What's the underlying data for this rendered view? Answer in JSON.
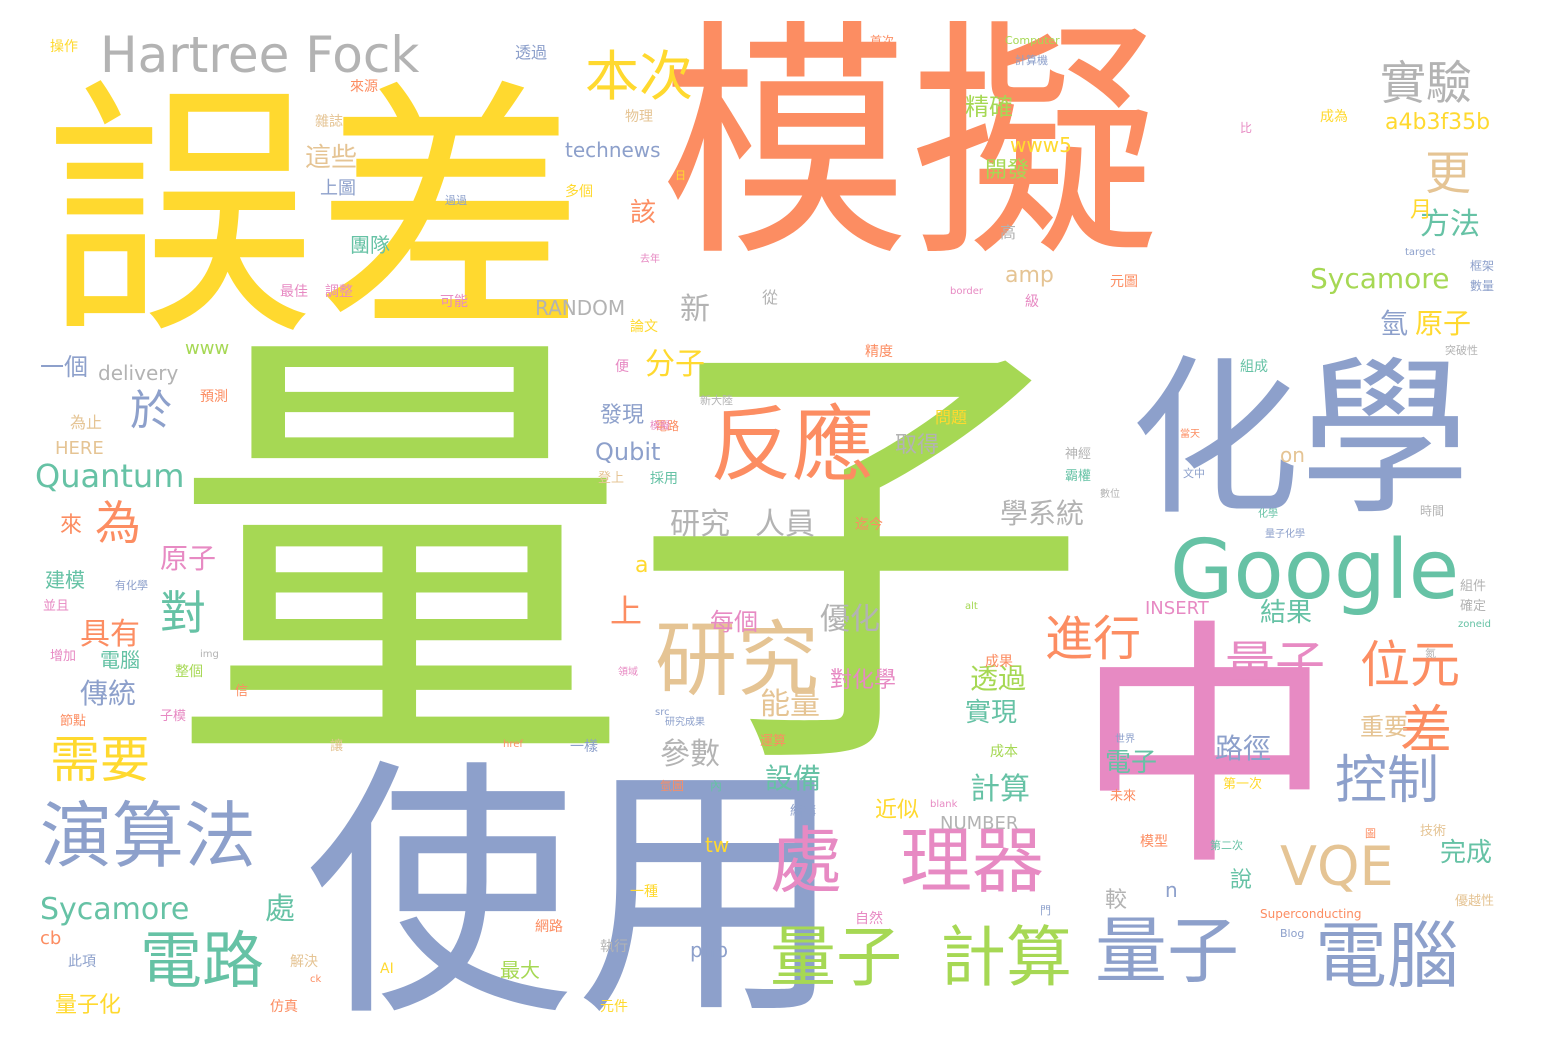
{
  "words": [
    {
      "text": "量子",
      "color": "#a6d854"
    },
    {
      "text": "模擬",
      "color": "#fc8d62"
    },
    {
      "text": "誤差",
      "color": "#ffd92f"
    },
    {
      "text": "使用",
      "color": "#8da0cb"
    },
    {
      "text": "化學",
      "color": "#8da0cb"
    },
    {
      "text": "中",
      "color": "#e78ac3"
    },
    {
      "text": "Google",
      "color": "#66c2a5"
    },
    {
      "text": "反應",
      "color": "#fc8d62"
    },
    {
      "text": "研究",
      "color": "#e5c494"
    },
    {
      "text": "演算法",
      "color": "#8da0cb"
    },
    {
      "text": "處",
      "color": "#e78ac3"
    },
    {
      "text": "理器",
      "color": "#e78ac3"
    },
    {
      "text": "量子",
      "color": "#a6d854"
    },
    {
      "text": "計算",
      "color": "#a6d854"
    },
    {
      "text": "量子",
      "color": "#8da0cb"
    },
    {
      "text": "電腦",
      "color": "#8da0cb"
    },
    {
      "text": "電路",
      "color": "#66c2a5"
    },
    {
      "text": "Hartree Fock",
      "color": "#b3b3b3"
    },
    {
      "text": "本次",
      "color": "#ffd92f"
    },
    {
      "text": "實驗",
      "color": "#b3b3b3"
    },
    {
      "text": "VQE",
      "color": "#e5c494"
    },
    {
      "text": "進行",
      "color": "#fc8d62"
    },
    {
      "text": "量子",
      "color": "#e78ac3"
    },
    {
      "text": "位元",
      "color": "#fc8d62"
    },
    {
      "text": "差",
      "color": "#fc8d62"
    },
    {
      "text": "控制",
      "color": "#8da0cb"
    },
    {
      "text": "需要",
      "color": "#ffd92f"
    },
    {
      "text": "為",
      "color": "#fc8d62"
    },
    {
      "text": "於",
      "color": "#8da0cb"
    },
    {
      "text": "對",
      "color": "#66c2a5"
    },
    {
      "text": "更",
      "color": "#e5c494"
    },
    {
      "text": "Quantum",
      "color": "#66c2a5"
    },
    {
      "text": "Sycamore",
      "color": "#a6d854"
    },
    {
      "text": "Sycamore",
      "color": "#66c2a5"
    },
    {
      "text": "處",
      "color": "#66c2a5"
    },
    {
      "text": "方法",
      "color": "#66c2a5"
    },
    {
      "text": "研究",
      "color": "#b3b3b3"
    },
    {
      "text": "人員",
      "color": "#b3b3b3"
    },
    {
      "text": "學系統",
      "color": "#b3b3b3"
    },
    {
      "text": "分子",
      "color": "#ffd92f"
    },
    {
      "text": "原子",
      "color": "#e78ac3"
    },
    {
      "text": "具有",
      "color": "#fc8d62"
    },
    {
      "text": "傳統",
      "color": "#8da0cb"
    },
    {
      "text": "參數",
      "color": "#b3b3b3"
    },
    {
      "text": "能量",
      "color": "#e5c494"
    },
    {
      "text": "計算",
      "color": "#66c2a5"
    },
    {
      "text": "透過",
      "color": "#a6d854"
    },
    {
      "text": "實現",
      "color": "#66c2a5"
    },
    {
      "text": "設備",
      "color": "#66c2a5"
    },
    {
      "text": "路徑",
      "color": "#8da0cb"
    },
    {
      "text": "電子",
      "color": "#66c2a5"
    },
    {
      "text": "優化",
      "color": "#b3b3b3"
    },
    {
      "text": "每個",
      "color": "#e78ac3"
    },
    {
      "text": "上",
      "color": "#fc8d62"
    },
    {
      "text": "新",
      "color": "#b3b3b3"
    },
    {
      "text": "氫",
      "color": "#8da0cb"
    },
    {
      "text": "原子",
      "color": "#ffd92f"
    },
    {
      "text": "結果",
      "color": "#66c2a5"
    },
    {
      "text": "完成",
      "color": "#66c2a5"
    },
    {
      "text": "重要",
      "color": "#e5c494"
    },
    {
      "text": "這些",
      "color": "#e5c494"
    },
    {
      "text": "該",
      "color": "#fc8d62"
    },
    {
      "text": "精確",
      "color": "#a6d854"
    },
    {
      "text": "開發",
      "color": "#a6d854"
    },
    {
      "text": "www5",
      "color": "#ffd92f"
    },
    {
      "text": "technews",
      "color": "#8da0cb"
    },
    {
      "text": "a4b3f35b",
      "color": "#ffd92f"
    },
    {
      "text": "Qubit",
      "color": "#8da0cb"
    },
    {
      "text": "發現",
      "color": "#8da0cb"
    },
    {
      "text": "對化學",
      "color": "#e78ac3"
    },
    {
      "text": "取得",
      "color": "#b3b3b3"
    },
    {
      "text": "一個",
      "color": "#8da0cb"
    },
    {
      "text": "delivery",
      "color": "#b3b3b3"
    },
    {
      "text": "建模",
      "color": "#66c2a5"
    },
    {
      "text": "電腦",
      "color": "#66c2a5"
    },
    {
      "text": "近似",
      "color": "#ffd92f"
    },
    {
      "text": "NUMBER",
      "color": "#b3b3b3"
    },
    {
      "text": "RANDOM",
      "color": "#b3b3b3"
    },
    {
      "text": "amp",
      "color": "#e5c494"
    },
    {
      "text": "INSERT",
      "color": "#e78ac3"
    },
    {
      "text": "on",
      "color": "#e5c494"
    },
    {
      "text": "a",
      "color": "#ffd92f"
    },
    {
      "text": "tw",
      "color": "#ffd92f"
    },
    {
      "text": "php",
      "color": "#8da0cb"
    },
    {
      "text": "HERE",
      "color": "#e5c494"
    },
    {
      "text": "www",
      "color": "#a6d854"
    },
    {
      "text": "團隊",
      "color": "#66c2a5"
    },
    {
      "text": "上圖",
      "color": "#8da0cb"
    },
    {
      "text": "月",
      "color": "#ffd92f"
    },
    {
      "text": "來",
      "color": "#fc8d62"
    },
    {
      "text": "最大",
      "color": "#a6d854"
    },
    {
      "text": "量子化",
      "color": "#ffd92f"
    },
    {
      "text": "說",
      "color": "#66c2a5"
    },
    {
      "text": "較",
      "color": "#b3b3b3"
    },
    {
      "text": "n",
      "color": "#8da0cb"
    },
    {
      "text": "cb",
      "color": "#fc8d62"
    },
    {
      "text": "操作",
      "color": "#ffd92f"
    },
    {
      "text": "透過",
      "color": "#8da0cb"
    },
    {
      "text": "多個",
      "color": "#ffd92f"
    },
    {
      "text": "來源",
      "color": "#fc8d62"
    },
    {
      "text": "物理",
      "color": "#e5c494"
    },
    {
      "text": "雜誌",
      "color": "#e5c494"
    },
    {
      "text": "成為",
      "color": "#ffd92f"
    },
    {
      "text": "為止",
      "color": "#e5c494"
    },
    {
      "text": "預測",
      "color": "#fc8d62"
    },
    {
      "text": "最佳",
      "color": "#e78ac3"
    },
    {
      "text": "調整",
      "color": "#e78ac3"
    },
    {
      "text": "可能",
      "color": "#e78ac3"
    },
    {
      "text": "元圖",
      "color": "#fc8d62"
    },
    {
      "text": "從",
      "color": "#b3b3b3"
    },
    {
      "text": "論文",
      "color": "#ffd92f"
    },
    {
      "text": "框架",
      "color": "#8da0cb"
    },
    {
      "text": "數量",
      "color": "#8da0cb"
    },
    {
      "text": "突破性",
      "color": "#b3b3b3"
    },
    {
      "text": "精度",
      "color": "#fc8d62"
    },
    {
      "text": "組成",
      "color": "#66c2a5"
    },
    {
      "text": "問題",
      "color": "#ffd92f"
    },
    {
      "text": "神經",
      "color": "#b3b3b3"
    },
    {
      "text": "霸權",
      "color": "#66c2a5"
    },
    {
      "text": "採用",
      "color": "#66c2a5"
    },
    {
      "text": "登上",
      "color": "#e5c494"
    },
    {
      "text": "迄今",
      "color": "#fc8d62"
    },
    {
      "text": "時間",
      "color": "#b3b3b3"
    },
    {
      "text": "組件",
      "color": "#b3b3b3"
    },
    {
      "text": "確定",
      "color": "#b3b3b3"
    },
    {
      "text": "成果",
      "color": "#fc8d62"
    },
    {
      "text": "成本",
      "color": "#a6d854"
    },
    {
      "text": "運算",
      "color": "#fc8d62"
    },
    {
      "text": "結構",
      "color": "#8da0cb"
    },
    {
      "text": "模型",
      "color": "#fc8d62"
    },
    {
      "text": "第一次",
      "color": "#ffd92f"
    },
    {
      "text": "未來",
      "color": "#fc8d62"
    },
    {
      "text": "第二次",
      "color": "#66c2a5"
    },
    {
      "text": "技術",
      "color": "#e5c494"
    },
    {
      "text": "優越性",
      "color": "#e5c494"
    },
    {
      "text": "一種",
      "color": "#ffd92f"
    },
    {
      "text": "網路",
      "color": "#fc8d62"
    },
    {
      "text": "執行",
      "color": "#b3b3b3"
    },
    {
      "text": "自然",
      "color": "#e78ac3"
    },
    {
      "text": "解決",
      "color": "#e5c494"
    },
    {
      "text": "仿真",
      "color": "#fc8d62"
    },
    {
      "text": "元件",
      "color": "#ffd92f"
    },
    {
      "text": "此項",
      "color": "#8da0cb"
    },
    {
      "text": "AI",
      "color": "#ffd92f"
    },
    {
      "text": "Superconducting",
      "color": "#fc8d62"
    },
    {
      "text": "Blog",
      "color": "#8da0cb"
    },
    {
      "text": "增加",
      "color": "#e78ac3"
    },
    {
      "text": "節點",
      "color": "#fc8d62"
    },
    {
      "text": "並且",
      "color": "#e78ac3"
    },
    {
      "text": "整個",
      "color": "#a6d854"
    },
    {
      "text": "信",
      "color": "#fc8d62"
    },
    {
      "text": "子模",
      "color": "#e78ac3"
    },
    {
      "text": "一樣",
      "color": "#8da0cb"
    },
    {
      "text": "便",
      "color": "#e78ac3"
    },
    {
      "text": "級",
      "color": "#e78ac3"
    },
    {
      "text": "高",
      "color": "#b3b3b3"
    },
    {
      "text": "首次",
      "color": "#fc8d62"
    },
    {
      "text": "計算機",
      "color": "#8da0cb"
    },
    {
      "text": "Computer",
      "color": "#a6d854"
    },
    {
      "text": "border",
      "color": "#e78ac3"
    },
    {
      "text": "target",
      "color": "#8da0cb"
    },
    {
      "text": "zoneid",
      "color": "#66c2a5"
    },
    {
      "text": "img",
      "color": "#b3b3b3"
    },
    {
      "text": "src",
      "color": "#8da0cb"
    },
    {
      "text": "href",
      "color": "#fc8d62"
    },
    {
      "text": "blank",
      "color": "#e78ac3"
    },
    {
      "text": "ck",
      "color": "#fc8d62"
    },
    {
      "text": "alt",
      "color": "#a6d854"
    },
    {
      "text": "過過",
      "color": "#8da0cb"
    },
    {
      "text": "去年",
      "color": "#e78ac3"
    },
    {
      "text": "日",
      "color": "#ffd92f"
    },
    {
      "text": "電路",
      "color": "#fc8d62"
    },
    {
      "text": "新大陸",
      "color": "#b3b3b3"
    },
    {
      "text": "有化學",
      "color": "#8da0cb"
    },
    {
      "text": "當天",
      "color": "#fc8d62"
    },
    {
      "text": "文中",
      "color": "#8da0cb"
    },
    {
      "text": "數位",
      "color": "#b3b3b3"
    },
    {
      "text": "研究成果",
      "color": "#8da0cb"
    },
    {
      "text": "領域",
      "color": "#e78ac3"
    },
    {
      "text": "世界",
      "color": "#8da0cb"
    },
    {
      "text": "氫圖",
      "color": "#fc8d62"
    },
    {
      "text": "內",
      "color": "#66c2a5"
    },
    {
      "text": "門",
      "color": "#8da0cb"
    },
    {
      "text": "讓",
      "color": "#e5c494"
    },
    {
      "text": "圖",
      "color": "#fc8d62"
    },
    {
      "text": "氮",
      "color": "#b3b3b3"
    },
    {
      "text": "量子化學",
      "color": "#8da0cb"
    },
    {
      "text": "化學",
      "color": "#66c2a5"
    },
    {
      "text": "模擬",
      "color": "#e78ac3"
    },
    {
      "text": "比",
      "color": "#e78ac3"
    }
  ]
}
